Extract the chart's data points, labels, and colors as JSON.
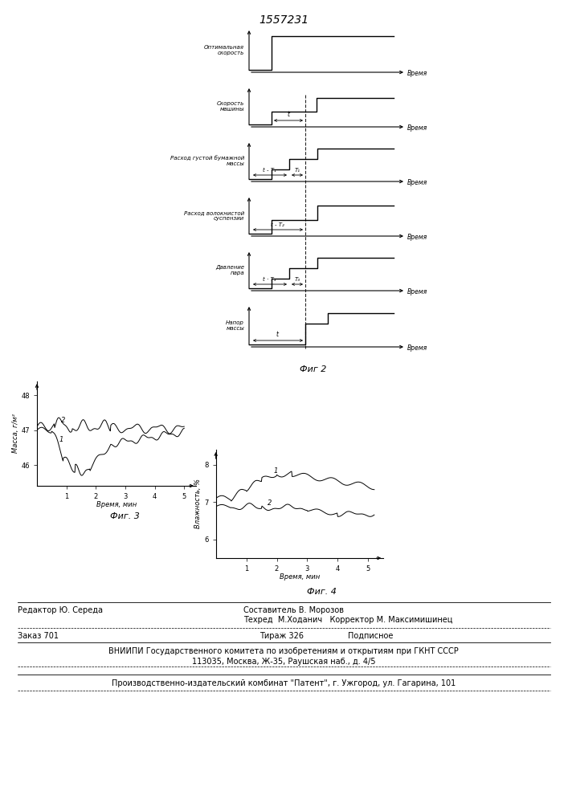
{
  "title": "1557231",
  "fig2_label": "Фиг 2",
  "fig3_label": "Фиг. 3",
  "fig4_label": "Фиг. 4",
  "time_word": "Время",
  "masa_label": "Масса, г/м²",
  "vlaga_label": "Влажность, %",
  "time_label_min": "Время, мин",
  "diagram_y_labels": [
    "Оптимальная\nскорость",
    "Скорость\nмашины",
    "Расход густой бумажной\nмассы",
    "Расход волокнистой\nсуспензии",
    "Давление\nпара",
    "Напор\nмассы"
  ],
  "footer": {
    "editor": "Редактор Ю. Середа",
    "sostavitel": "Составитель В. Морозов",
    "tehred": "Техред  М.Ходанич   Корректор М. Максимишинец",
    "zakaz": "Заказ 701",
    "tirazh": "Тираж 326",
    "podpisnoe": "Подписное",
    "vniip1": "ВНИИПИ Государственного комитета по изобретениям и открытиям при ГКНТ СССР",
    "vniip2": "113035, Москва, Ж-35, Раушская наб., д. 4/5",
    "proizv": "Производственно-издательский комбинат \"Патент\", г. Ужгород, ул. Гагарина, 101"
  }
}
